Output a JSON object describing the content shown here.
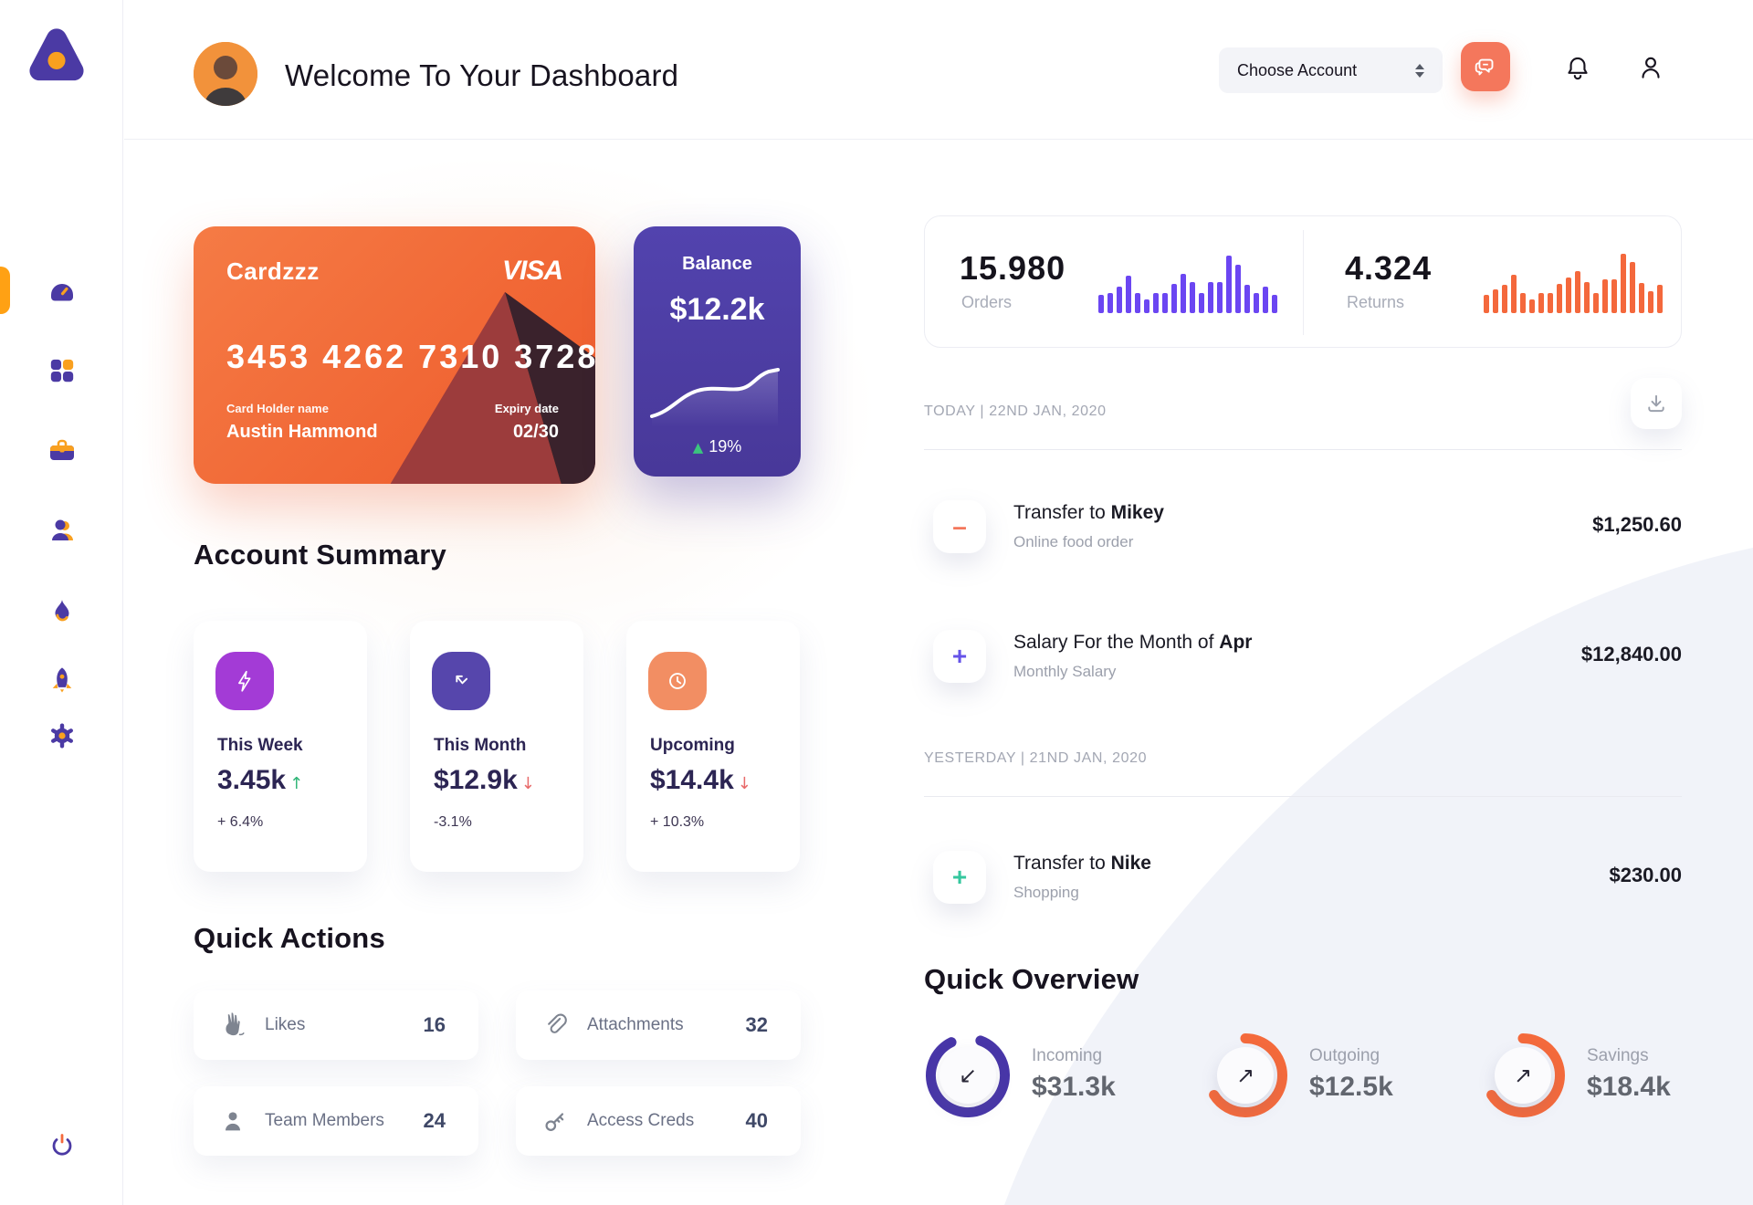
{
  "header": {
    "title": "Welcome To Your Dashboard",
    "account_select_label": "Choose Account"
  },
  "sidebar": {
    "items": [
      {
        "icon": "speedometer-icon",
        "active": true
      },
      {
        "icon": "grid-icon",
        "active": false
      },
      {
        "icon": "briefcase-icon",
        "active": false
      },
      {
        "icon": "user-icon",
        "active": false
      },
      {
        "icon": "flame-icon",
        "active": false
      },
      {
        "icon": "rocket-icon",
        "active": false
      },
      {
        "icon": "gear-icon",
        "active": false
      }
    ],
    "logout_icon": "power-icon"
  },
  "credit_card": {
    "name": "Cardzzz",
    "brand": "VISA",
    "number": "3453 4262 7310 3728",
    "holder_label": "Card Holder name",
    "holder": "Austin Hammond",
    "expiry_label": "Expiry date",
    "expiry": "02/30"
  },
  "balance": {
    "label": "Balance",
    "value": "$12.2k",
    "change": "19%",
    "trend_arrow": "▲"
  },
  "stats": {
    "orders": {
      "value": "15.980",
      "label": "Orders",
      "color": "#6B46F2",
      "bars": [
        30,
        33,
        42,
        60,
        33,
        22,
        33,
        33,
        47,
        63,
        50,
        32,
        50,
        50,
        92,
        78,
        45,
        33,
        42,
        30
      ]
    },
    "returns": {
      "value": "4.324",
      "label": "Returns",
      "color": "#F4683C",
      "bars": [
        30,
        38,
        45,
        62,
        33,
        22,
        33,
        33,
        47,
        58,
        68,
        50,
        33,
        55,
        55,
        95,
        82,
        48,
        35,
        45
      ]
    }
  },
  "transactions": {
    "today_label": "TODAY | 22ND JAN, 2020",
    "yesterday_label": "YESTERDAY | 21ND JAN, 2020",
    "rows": [
      {
        "title_prefix": "Transfer to ",
        "title_bold": "Mikey",
        "subtitle": "Online food order",
        "amount": "$1,250.60",
        "sign": "–",
        "sign_color": "#F4775C"
      },
      {
        "title_prefix": "Salary For the Month of ",
        "title_bold": "Apr",
        "subtitle": "Monthly Salary",
        "amount": "$12,840.00",
        "sign": "+",
        "sign_color": "#6553E8"
      },
      {
        "title_prefix": "Transfer to ",
        "title_bold": "Nike",
        "subtitle": "Shopping",
        "amount": "$230.00",
        "sign": "+",
        "sign_color": "#35C79E"
      }
    ]
  },
  "account_summary": {
    "heading": "Account Summary",
    "cards": [
      {
        "label": "This Week",
        "value": "3.45k",
        "delta": "+ 6.4%",
        "icon": "lightning-icon",
        "icon_bg": "#A33BD6",
        "arrow": "↑",
        "arrow_color": "#2FB577"
      },
      {
        "label": "This Month",
        "value": "$12.9k",
        "delta": "-3.1%",
        "icon": "trend-arrow-icon",
        "icon_bg": "#5646AC",
        "arrow": "↓",
        "arrow_color": "#E86A6A"
      },
      {
        "label": "Upcoming",
        "value": "$14.4k",
        "delta": "+ 10.3%",
        "icon": "clock-icon",
        "icon_bg": "#F28E63",
        "arrow": "↓",
        "arrow_color": "#E86A6A"
      }
    ]
  },
  "quick_actions": {
    "heading": "Quick Actions",
    "items": [
      {
        "label": "Likes",
        "count": "16",
        "icon": "clap-icon"
      },
      {
        "label": "Attachments",
        "count": "32",
        "icon": "paperclip-icon"
      },
      {
        "label": "Team Members",
        "count": "24",
        "icon": "person-icon"
      },
      {
        "label": "Access Creds",
        "count": "40",
        "icon": "key-icon"
      }
    ]
  },
  "quick_overview": {
    "heading": "Quick Overview",
    "items": [
      {
        "label": "Incoming",
        "value": "$31.3k",
        "percent": 87,
        "ring_color": "#4836A8",
        "arrow": "↙"
      },
      {
        "label": "Outgoing",
        "value": "$12.5k",
        "percent": 66,
        "ring_color": "#F46A3C",
        "arrow": "↗"
      },
      {
        "label": "Savings",
        "value": "$18.4k",
        "percent": 66,
        "ring_color": "#F46A3C",
        "arrow": "↗"
      }
    ]
  }
}
